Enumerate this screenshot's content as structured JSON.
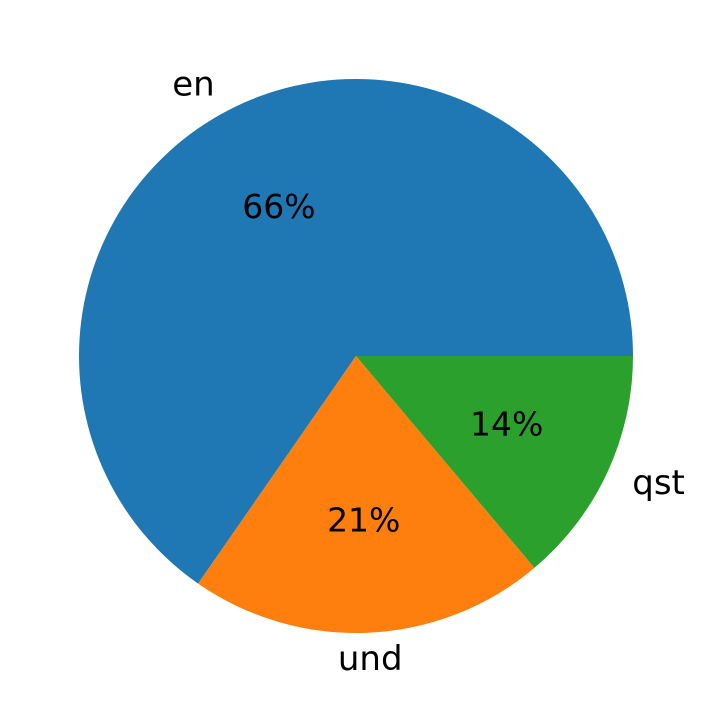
{
  "chart_data": {
    "type": "pie",
    "slices": [
      {
        "label": "en",
        "percent_label": "66%",
        "value": 66,
        "color": "#1f77b4"
      },
      {
        "label": "und",
        "percent_label": "21%",
        "value": 21,
        "color": "#ff7f0e"
      },
      {
        "label": "qst",
        "percent_label": "14%",
        "value": 14,
        "color": "#2ca02c"
      }
    ],
    "start_angle_deg": 0,
    "direction": "counterclockwise"
  }
}
